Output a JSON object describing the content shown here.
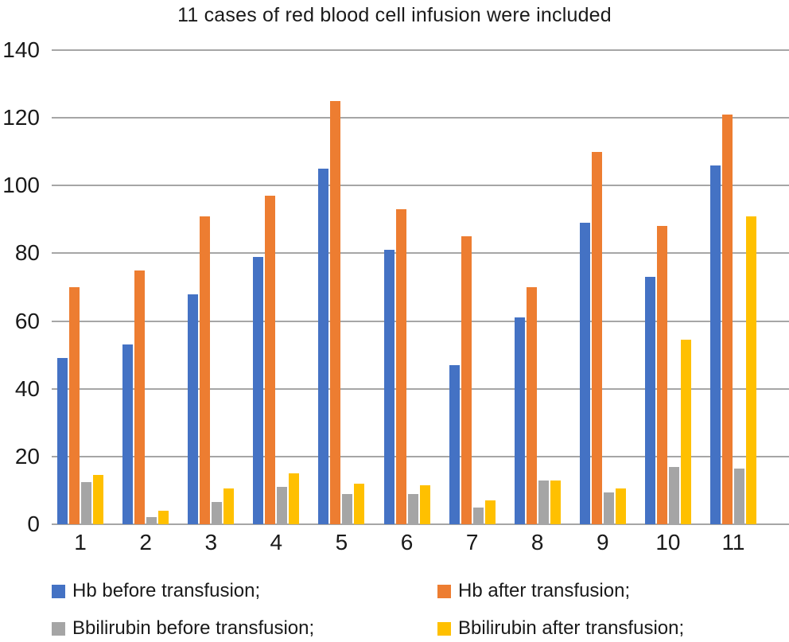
{
  "chart_data": {
    "type": "bar",
    "title": "11 cases of red blood cell infusion were included",
    "categories": [
      "1",
      "2",
      "3",
      "4",
      "5",
      "6",
      "7",
      "8",
      "9",
      "10",
      "11"
    ],
    "series": [
      {
        "name": "Hb before transfusion;",
        "color": "#4472C4",
        "values": [
          49,
          53,
          68,
          79,
          105,
          81,
          47,
          61,
          89,
          73,
          106
        ]
      },
      {
        "name": "Hb after transfusion;",
        "color": "#ED7D31",
        "values": [
          70,
          75,
          91,
          97,
          125,
          93,
          85,
          70,
          110,
          88,
          121
        ]
      },
      {
        "name": "Bbilirubin before transfusion;",
        "color": "#A5A5A5",
        "values": [
          12.5,
          2,
          6.5,
          11,
          9,
          9,
          5,
          13,
          9.5,
          17,
          16.5
        ]
      },
      {
        "name": "Bbilirubin after transfusion;",
        "color": "#FFC000",
        "values": [
          14.5,
          4,
          10.5,
          15,
          12,
          11.5,
          7,
          13,
          10.5,
          54.5,
          91
        ]
      }
    ],
    "xlabel": "",
    "ylabel": "",
    "ylim": [
      0,
      140
    ],
    "yticks": [
      0,
      20,
      40,
      60,
      80,
      100,
      120,
      140
    ],
    "grid": true,
    "legend_position": "bottom",
    "gridline_color": "#A6A6A6",
    "text_color": "#1A1A1A"
  }
}
